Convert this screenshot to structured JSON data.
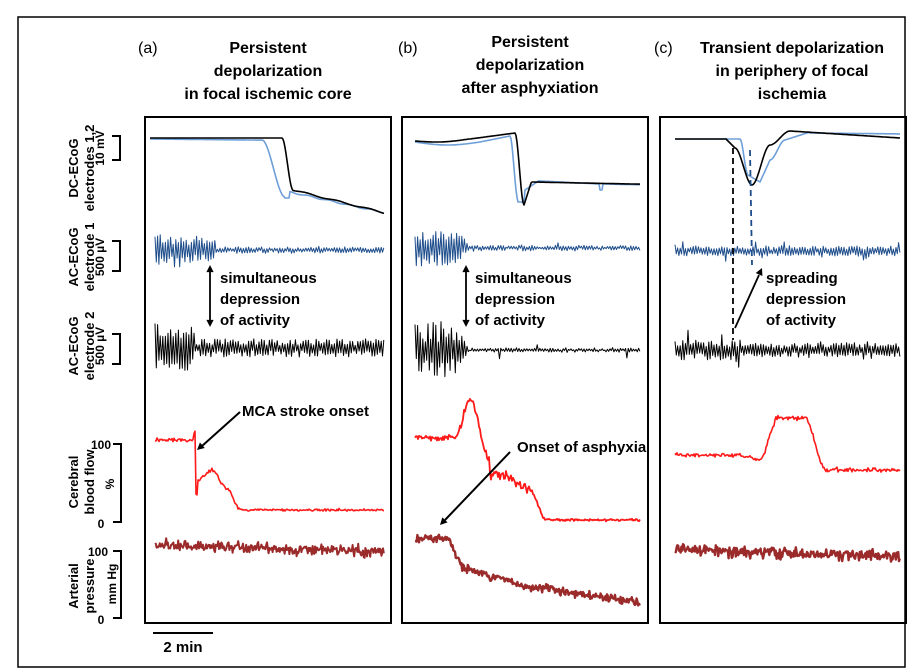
{
  "chart_data": {
    "type": "line",
    "panels": [
      {
        "letter": "(a)",
        "title": [
          "Persistent",
          "depolarization",
          "in focal ischemic core"
        ]
      },
      {
        "letter": "(b)",
        "title": [
          "Persistent",
          "depolarization",
          "after asphyxiation"
        ]
      },
      {
        "letter": "(c)",
        "title": [
          "Transient depolarization",
          "in periphery of focal",
          "ischemia"
        ]
      }
    ],
    "rows": [
      {
        "label": [
          "DC-ECoG",
          "electrodes 1,2"
        ],
        "scale": "10 mV"
      },
      {
        "label": [
          "AC-ECoG",
          "electrode 1"
        ],
        "scale": "500 µV"
      },
      {
        "label": [
          "AC-ECoG",
          "electrode 2"
        ],
        "scale": "500 µV"
      },
      {
        "label": [
          "Cerebral",
          "blood flow"
        ],
        "unit": "%",
        "ticks": [
          "100",
          "0"
        ]
      },
      {
        "label": [
          "Arterial",
          "pressure"
        ],
        "unit": "mm Hg",
        "ticks": [
          "100",
          "0"
        ]
      }
    ],
    "annotations": {
      "a_depression": [
        "simultaneous",
        "depression",
        "of activity"
      ],
      "a_onset": "MCA stroke onset",
      "b_depression": [
        "simultaneous",
        "depression",
        "of activity"
      ],
      "b_onset": "Onset of asphyxia",
      "c_depression": [
        "spreading",
        "depression",
        "of activity"
      ]
    },
    "scale_bar": "2 min",
    "colors": {
      "electrode1": "#1f4e8c",
      "electrode2": "#6f9fd8",
      "black": "#000000",
      "blood_flow": "#ff1a1a",
      "arterial_pressure": "#9b2a2a"
    }
  }
}
